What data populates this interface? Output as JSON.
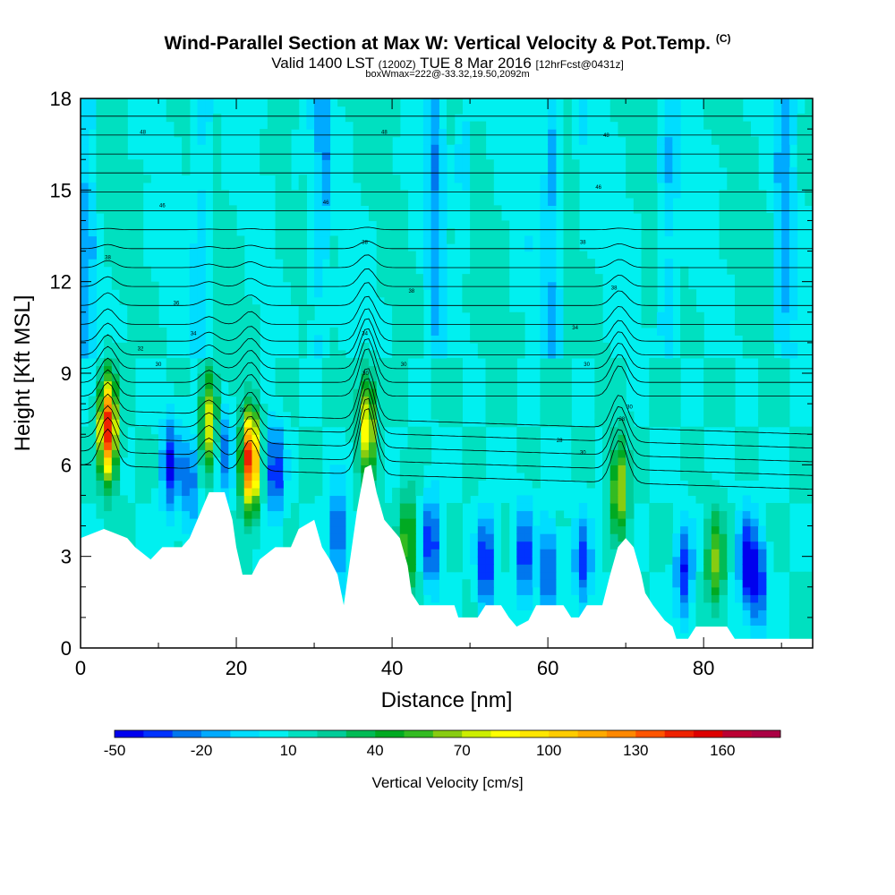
{
  "title": {
    "main": "Wind-Parallel Section at Max W: Vertical Velocity & Pot.Temp.",
    "copyright": "(C)",
    "valid_prefix": "Valid 1400 LST",
    "valid_utc": "(1200Z)",
    "valid_date": "TUE 8 Mar 2016",
    "forecast": "[12hrFcst@0431z]",
    "box_info": "boxWmax=222@-33.32,19.50,2092m"
  },
  "chart_data": {
    "type": "heatmap",
    "xlabel": "Distance [nm]",
    "ylabel": "Height [Kft MSL]",
    "xlim": [
      0,
      94
    ],
    "ylim": [
      0,
      18
    ],
    "x_ticks": [
      0,
      20,
      40,
      60,
      80
    ],
    "y_ticks": [
      0,
      3,
      6,
      9,
      12,
      15,
      18
    ],
    "x_tick_labels": [
      "0",
      "20",
      "40",
      "60",
      "80"
    ],
    "y_tick_labels": [
      "0",
      "3",
      "6",
      "9",
      "12",
      "15",
      "18"
    ],
    "colorbar": {
      "label": "Vertical Velocity [cm/s]",
      "min": -50,
      "max": 180,
      "step": 10,
      "tick_values": [
        -50,
        -20,
        10,
        40,
        70,
        100,
        130,
        160
      ],
      "tick_labels": [
        "-50",
        "-20",
        "10",
        "40",
        "70",
        "100",
        "130",
        "160"
      ],
      "colors": [
        "#0000ee",
        "#0033ff",
        "#0077ee",
        "#00aaff",
        "#00ddff",
        "#00f0f0",
        "#00e0c0",
        "#00cc99",
        "#00bb55",
        "#00aa22",
        "#33bb22",
        "#88cc11",
        "#ccee00",
        "#ffff00",
        "#ffe600",
        "#ffcc00",
        "#ffaa00",
        "#ff8800",
        "#ff5500",
        "#ee2200",
        "#dd0000",
        "#bb0033",
        "#aa0044"
      ]
    },
    "terrain_kft": [
      [
        0,
        3.6
      ],
      [
        3,
        3.9
      ],
      [
        6,
        3.6
      ],
      [
        7,
        3.3
      ],
      [
        9,
        2.9
      ],
      [
        10.5,
        3.3
      ],
      [
        13,
        3.3
      ],
      [
        14,
        3.6
      ],
      [
        15.5,
        4.5
      ],
      [
        16.5,
        5.1
      ],
      [
        18.5,
        5.1
      ],
      [
        19.5,
        4.2
      ],
      [
        20,
        3.3
      ],
      [
        20.8,
        2.4
      ],
      [
        22,
        2.4
      ],
      [
        23,
        2.9
      ],
      [
        25,
        3.3
      ],
      [
        27,
        3.3
      ],
      [
        28,
        3.9
      ],
      [
        30,
        4.2
      ],
      [
        31,
        3.3
      ],
      [
        32,
        2.9
      ],
      [
        33,
        2.4
      ],
      [
        33.8,
        1.4
      ],
      [
        34.5,
        2.7
      ],
      [
        35.5,
        4.5
      ],
      [
        36.5,
        5.9
      ],
      [
        37.3,
        6.0
      ],
      [
        38,
        5.1
      ],
      [
        39,
        4.2
      ],
      [
        40,
        3.9
      ],
      [
        41,
        3.6
      ],
      [
        42,
        2.7
      ],
      [
        42.5,
        1.8
      ],
      [
        43.5,
        1.4
      ],
      [
        48,
        1.4
      ],
      [
        48.5,
        1.0
      ],
      [
        51,
        1.0
      ],
      [
        52,
        1.4
      ],
      [
        54,
        1.4
      ],
      [
        55,
        1.0
      ],
      [
        56,
        0.7
      ],
      [
        57.5,
        0.9
      ],
      [
        58.5,
        1.4
      ],
      [
        61,
        1.4
      ],
      [
        62,
        1.4
      ],
      [
        63,
        1.0
      ],
      [
        64,
        1.0
      ],
      [
        65,
        1.4
      ],
      [
        67,
        1.4
      ],
      [
        68,
        2.4
      ],
      [
        69,
        3.3
      ],
      [
        70,
        3.6
      ],
      [
        71,
        3.3
      ],
      [
        72,
        2.4
      ],
      [
        72.5,
        1.8
      ],
      [
        73.5,
        1.4
      ],
      [
        75,
        0.9
      ],
      [
        76,
        0.7
      ],
      [
        76.5,
        0.3
      ],
      [
        78,
        0.3
      ],
      [
        79,
        0.7
      ],
      [
        83,
        0.7
      ],
      [
        84,
        0.3
      ],
      [
        94,
        0.3
      ]
    ],
    "updraft_cores": [
      {
        "x": 3.5,
        "y_center": 7.2,
        "peak_cms": 150
      },
      {
        "x": 16.5,
        "y_center": 7.5,
        "peak_cms": 80
      },
      {
        "x": 21.8,
        "y_center": 6.2,
        "peak_cms": 150
      },
      {
        "x": 36.8,
        "y_center": 7.3,
        "peak_cms": 90
      },
      {
        "x": 42.0,
        "y_center": 3.4,
        "peak_cms": 60
      },
      {
        "x": 69.2,
        "y_center": 5.3,
        "peak_cms": 75
      },
      {
        "x": 81.5,
        "y_center": 2.8,
        "peak_cms": 60
      }
    ],
    "downdraft_cores": [
      {
        "x": 11.5,
        "y_center": 6.0,
        "peak_cms": -40
      },
      {
        "x": 14.0,
        "y_center": 5.5,
        "peak_cms": -30
      },
      {
        "x": 18.5,
        "y_center": 6.5,
        "peak_cms": -25
      },
      {
        "x": 25.0,
        "y_center": 5.8,
        "peak_cms": -40
      },
      {
        "x": 33.0,
        "y_center": 3.8,
        "peak_cms": -35
      },
      {
        "x": 45.0,
        "y_center": 3.5,
        "peak_cms": -40
      },
      {
        "x": 52.0,
        "y_center": 2.8,
        "peak_cms": -45
      },
      {
        "x": 57.0,
        "y_center": 3.0,
        "peak_cms": -40
      },
      {
        "x": 60.0,
        "y_center": 2.6,
        "peak_cms": -35
      },
      {
        "x": 64.5,
        "y_center": 2.8,
        "peak_cms": -35
      },
      {
        "x": 77.5,
        "y_center": 2.5,
        "peak_cms": -40
      },
      {
        "x": 85.5,
        "y_center": 2.8,
        "peak_cms": -45
      },
      {
        "x": 87.0,
        "y_center": 2.2,
        "peak_cms": -40
      }
    ],
    "theta_contour_labels": [
      {
        "text": "48",
        "x": 8,
        "y": 16.9
      },
      {
        "text": "48",
        "x": 39,
        "y": 16.9
      },
      {
        "text": "48",
        "x": 67.5,
        "y": 16.8
      },
      {
        "text": "46",
        "x": 10.5,
        "y": 14.5
      },
      {
        "text": "46",
        "x": 31.5,
        "y": 14.6
      },
      {
        "text": "46",
        "x": 66.5,
        "y": 15.1
      },
      {
        "text": "38",
        "x": 3.5,
        "y": 12.8
      },
      {
        "text": "38",
        "x": 36.5,
        "y": 13.3
      },
      {
        "text": "38",
        "x": 64.5,
        "y": 13.3
      },
      {
        "text": "38",
        "x": 42.5,
        "y": 11.7
      },
      {
        "text": "38",
        "x": 68.5,
        "y": 11.8
      },
      {
        "text": "36",
        "x": 12.3,
        "y": 11.3
      },
      {
        "text": "34",
        "x": 14.5,
        "y": 10.3
      },
      {
        "text": "34",
        "x": 36.5,
        "y": 10.3
      },
      {
        "text": "34",
        "x": 63.5,
        "y": 10.5
      },
      {
        "text": "32",
        "x": 7.7,
        "y": 9.8
      },
      {
        "text": "30",
        "x": 10,
        "y": 9.3
      },
      {
        "text": "30",
        "x": 41.5,
        "y": 9.3
      },
      {
        "text": "30",
        "x": 65,
        "y": 9.3
      },
      {
        "text": "30",
        "x": 36.6,
        "y": 9.0
      },
      {
        "text": "28",
        "x": 20.8,
        "y": 7.8
      },
      {
        "text": "28",
        "x": 61.5,
        "y": 6.8
      },
      {
        "text": "28",
        "x": 69.5,
        "y": 7.5
      },
      {
        "text": "30",
        "x": 70.5,
        "y": 7.9
      },
      {
        "text": "30",
        "x": 64.5,
        "y": 6.4
      }
    ]
  }
}
